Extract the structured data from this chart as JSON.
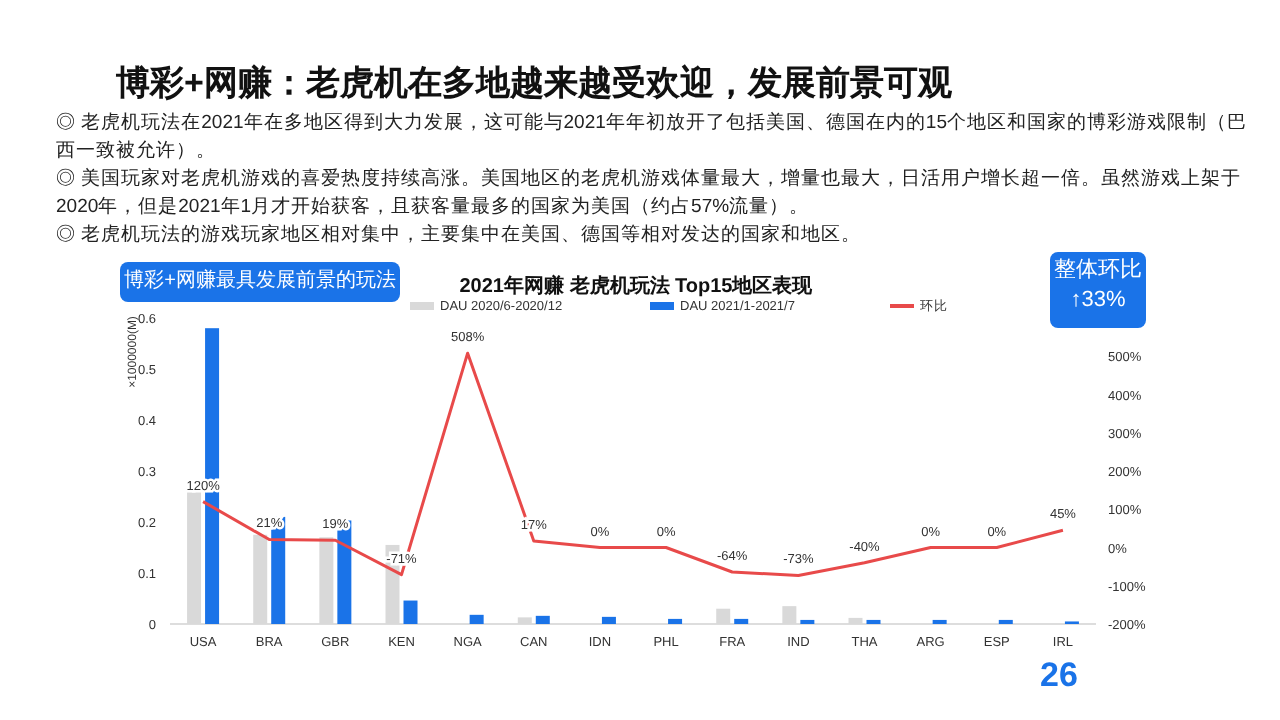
{
  "chart_data": {
    "type": "bar",
    "title": "博彩+网赚：老虎机在多地越来越受欢迎，发展前景可观",
    "subtitle": "2021年网赚 老虎机玩法 Top15地区表现",
    "ylabel": "×1000000(M)",
    "annotations": [
      "◎ 老虎机玩法在2021年在多地区得到大力发展，这可能与2021年年初放开了包括美国、德国在内的15个地区和国家的博彩游戏限制（巴西一致被允许）。",
      "◎ 美国玩家对老虎机游戏的喜爱热度持续高涨。美国地区的老虎机游戏体量最大，增量也最大，日活用户增长超一倍。虽然游戏上架于2020年，但是2021年1月才开始获客，且获客量最多的国家为美国（约占57%流量）。",
      "◎ 老虎机玩法的游戏玩家地区相对集中，主要集中在美国、德国等相对发达的国家和地区。",
      "博彩+网赚最具发展前景的玩法",
      "整体环比 ↑33%",
      "26"
    ],
    "categories": [
      "USA",
      "BRA",
      "GBR",
      "KEN",
      "NGA",
      "CAN",
      "IDN",
      "PHL",
      "FRA",
      "IND",
      "THA",
      "ARG",
      "ESP",
      "IRL"
    ],
    "series": [
      {
        "name": "DAU 2020/6-2020/12",
        "color": "#d9d9d9",
        "values": [
          0.265,
          0.175,
          0.17,
          0.155,
          null,
          0.013,
          0,
          0,
          0.03,
          0.035,
          0.012,
          0,
          0,
          null
        ]
      },
      {
        "name": "DAU 2021/1-2021/7",
        "color": "#1a73e8",
        "values": [
          0.58,
          0.21,
          0.203,
          0.046,
          0.018,
          0.016,
          0.014,
          0.01,
          0.01,
          0.008,
          0.008,
          0.008,
          0.008,
          0.005
        ]
      },
      {
        "name": "环比",
        "type": "line",
        "axis": "y2",
        "color": "#e84a4a",
        "values": [
          120,
          21,
          19,
          -71,
          508,
          17,
          0,
          0,
          -64,
          -73,
          -40,
          0,
          0,
          45
        ],
        "value_labels": [
          "120%",
          "21%",
          "19%",
          "-71%",
          "508%",
          "17%",
          "0%",
          "0%",
          "-64%",
          "-73%",
          "-40%",
          "0%",
          "0%",
          "45%"
        ]
      }
    ],
    "ylim": [
      0,
      0.6
    ],
    "yticks": [
      0,
      0.1,
      0.2,
      0.3,
      0.4,
      0.5,
      0.6
    ],
    "y2lim": [
      -200,
      600
    ],
    "y2ticks": [
      {
        "value": -200,
        "label": "-200%"
      },
      {
        "value": -100,
        "label": "-100%"
      },
      {
        "value": 0,
        "label": "0%"
      },
      {
        "value": 100,
        "label": "100%"
      },
      {
        "value": 200,
        "label": "200%"
      },
      {
        "value": 300,
        "label": "300%"
      },
      {
        "value": 400,
        "label": "400%"
      },
      {
        "value": 500,
        "label": "500%"
      }
    ],
    "legend": "top"
  }
}
